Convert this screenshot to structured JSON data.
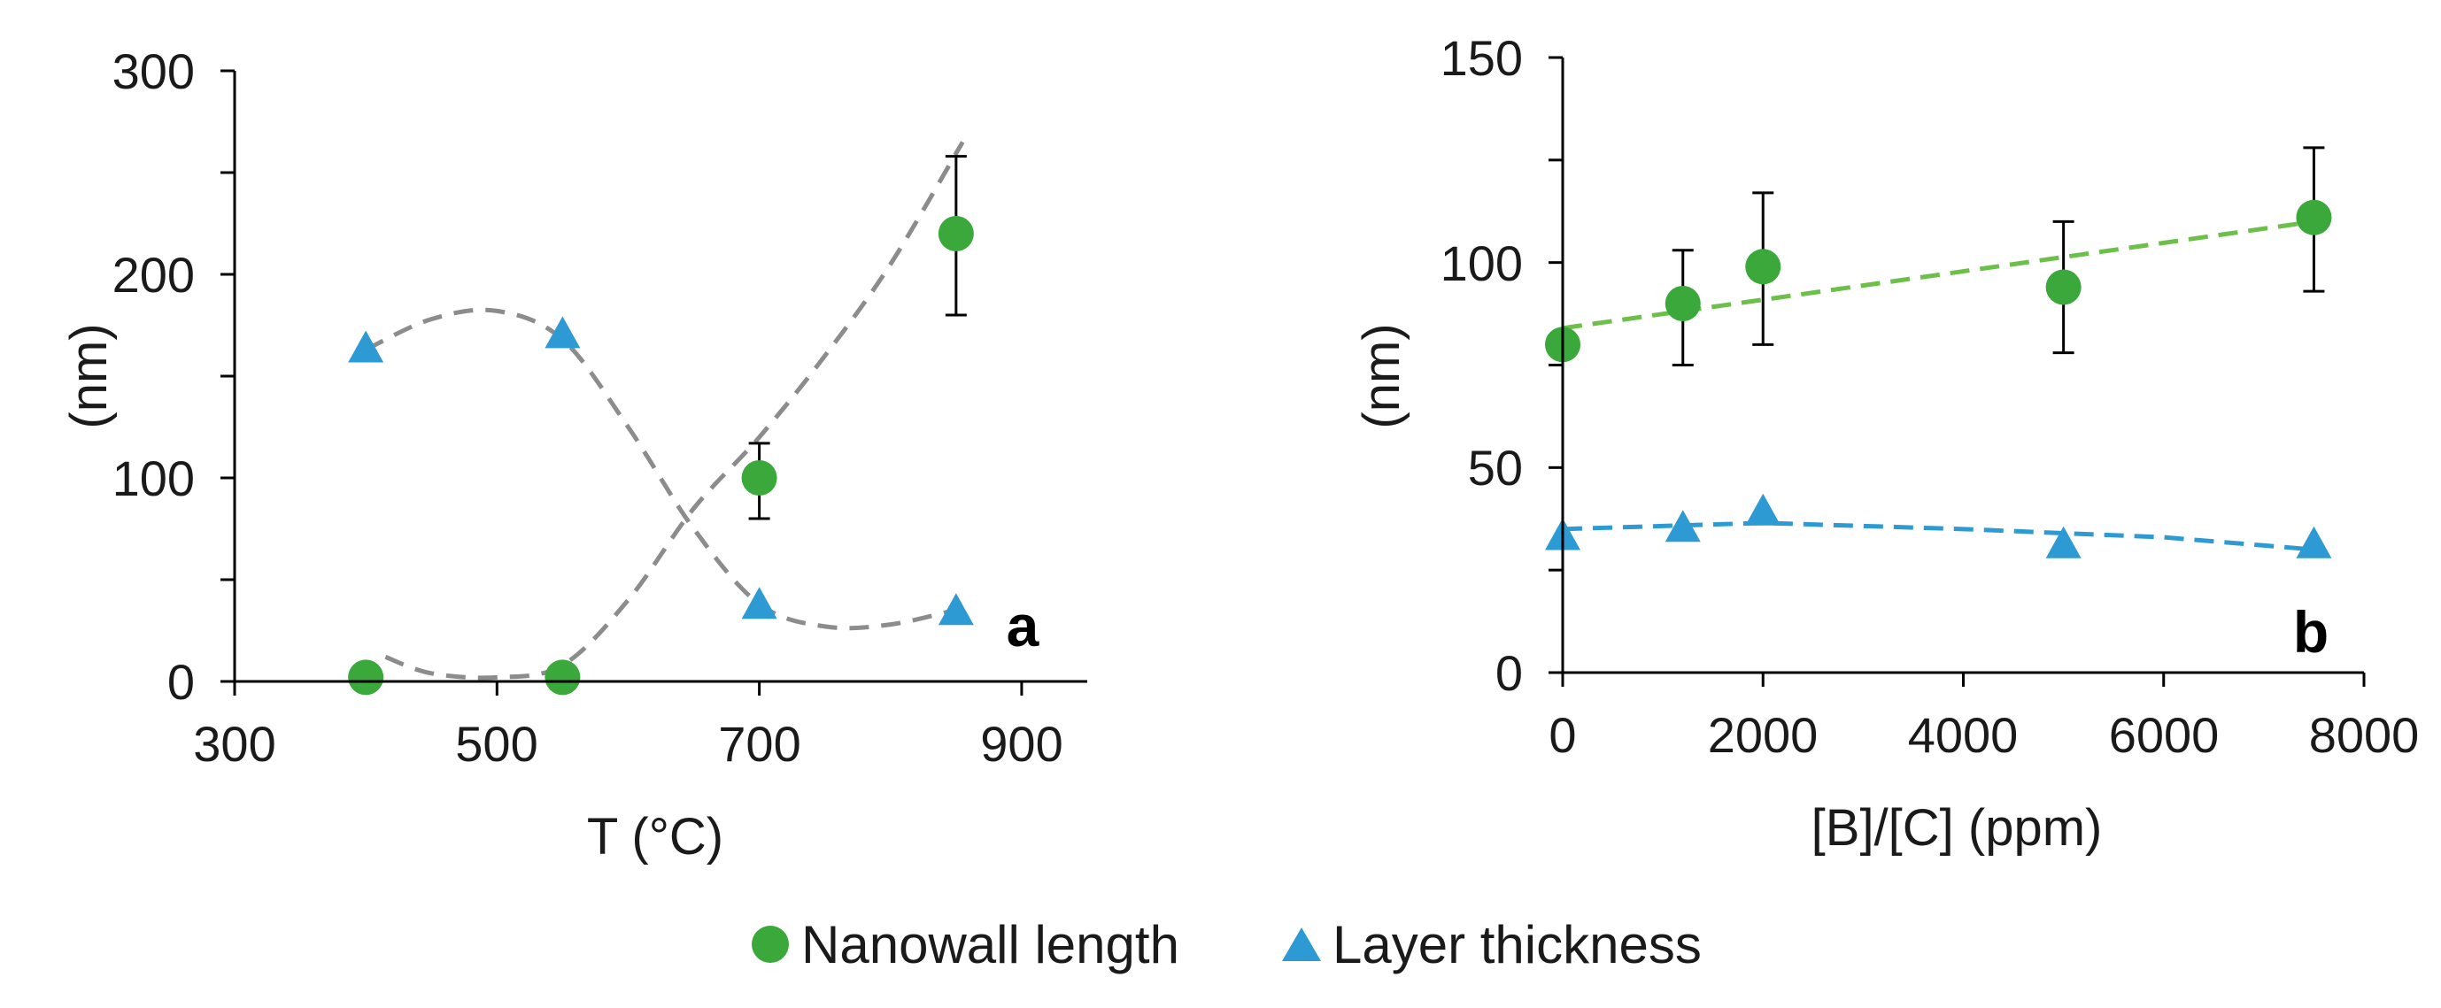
{
  "legend": {
    "items": [
      {
        "label": "Nanowall length",
        "marker": "circle"
      },
      {
        "label": "Layer thickness",
        "marker": "triangle"
      }
    ]
  },
  "colors": {
    "nanowall": "#3aa83a",
    "layer": "#2e9ad4",
    "fit_a": "#8c8c8c",
    "fit_b_nanowall": "#6cc04a",
    "fit_b_layer": "#2e9ad4",
    "axis": "#000000"
  },
  "chart_data": [
    {
      "panel": "a",
      "type": "scatter",
      "xlabel": "T (°C)",
      "ylabel": "(nm)",
      "xlim": [
        300,
        950
      ],
      "ylim": [
        0,
        300
      ],
      "xticks": [
        300,
        500,
        700,
        900
      ],
      "yticks": [
        0,
        100,
        200,
        300
      ],
      "series": [
        {
          "name": "Nanowall length",
          "marker": "circle",
          "x": [
            400,
            550,
            700,
            850
          ],
          "y": [
            2,
            2,
            100,
            220
          ],
          "yerr_low": [
            0,
            0,
            80,
            180
          ],
          "yerr_high": [
            0,
            0,
            117,
            258
          ],
          "fit_x": [
            415,
            450,
            500,
            550,
            600,
            650,
            700,
            750,
            800,
            855
          ],
          "fit_y": [
            12,
            4,
            2,
            8,
            40,
            85,
            120,
            160,
            205,
            265
          ]
        },
        {
          "name": "Layer thickness",
          "marker": "triangle",
          "x": [
            400,
            550,
            700,
            850
          ],
          "y": [
            163,
            170,
            37,
            34
          ],
          "fit_x": [
            400,
            450,
            500,
            550,
            600,
            650,
            700,
            750,
            800,
            855
          ],
          "fit_y": [
            163,
            178,
            182,
            168,
            125,
            75,
            38,
            27,
            28,
            36
          ]
        }
      ]
    },
    {
      "panel": "b",
      "type": "scatter",
      "xlabel": "[B]/[C] (ppm)",
      "ylabel": "(nm)",
      "xlim": [
        0,
        8000
      ],
      "ylim": [
        0,
        150
      ],
      "xticks": [
        0,
        2000,
        4000,
        6000,
        8000
      ],
      "yticks": [
        0,
        50,
        100,
        150
      ],
      "series": [
        {
          "name": "Nanowall length",
          "marker": "circle",
          "x": [
            0,
            1200,
            2000,
            5000,
            7500
          ],
          "y": [
            80,
            90,
            99,
            94,
            111
          ],
          "yerr_low": [
            80,
            75,
            80,
            78,
            93
          ],
          "yerr_high": [
            80,
            103,
            117,
            110,
            128
          ],
          "fit_x": [
            0,
            7500
          ],
          "fit_y": [
            84,
            110
          ]
        },
        {
          "name": "Layer thickness",
          "marker": "triangle",
          "x": [
            0,
            1200,
            2000,
            5000,
            7500
          ],
          "y": [
            33,
            35,
            39,
            31,
            31
          ],
          "fit_x": [
            0,
            2000,
            4000,
            6000,
            7500
          ],
          "fit_y": [
            35,
            36.5,
            35,
            33,
            30
          ]
        }
      ]
    }
  ]
}
